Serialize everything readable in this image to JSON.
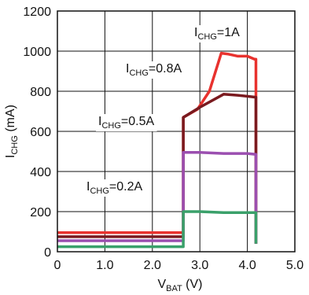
{
  "chart_data": {
    "type": "line",
    "title": "",
    "xlabel": {
      "main": "V",
      "sub": "BAT",
      "unit": " (V)"
    },
    "ylabel": {
      "main": "I",
      "sub": "CHG",
      "unit": " (mA)"
    },
    "xlim": [
      0,
      5.0
    ],
    "ylim": [
      0,
      1200
    ],
    "xticks": [
      "0",
      "1.0",
      "2.0",
      "3.0",
      "4.0",
      "5.0"
    ],
    "yticks": [
      "0",
      "200",
      "400",
      "600",
      "800",
      "1000",
      "1200"
    ],
    "grid": true,
    "series": [
      {
        "name": "ICHG=1A",
        "label": {
          "main": "I",
          "sub": "CHG",
          "rest": "=1A"
        },
        "color": "#e8322e",
        "x": [
          0.0,
          2.65,
          2.65,
          2.95,
          3.2,
          3.45,
          3.6,
          3.8,
          4.0,
          4.15,
          4.18,
          4.18
        ],
        "y": [
          95,
          95,
          670,
          710,
          800,
          990,
          985,
          975,
          975,
          960,
          960,
          40
        ]
      },
      {
        "name": "ICHG=0.8A",
        "label": {
          "main": "I",
          "sub": "CHG",
          "rest": "=0.8A"
        },
        "color": "#7a1a1f",
        "x": [
          0.0,
          2.65,
          2.65,
          3.0,
          3.5,
          3.8,
          4.0,
          4.18,
          4.18
        ],
        "y": [
          75,
          75,
          670,
          720,
          785,
          780,
          775,
          770,
          40
        ]
      },
      {
        "name": "ICHG=0.5A",
        "label": {
          "main": "I",
          "sub": "CHG",
          "rest": "=0.5A"
        },
        "color": "#9b4fb0",
        "x": [
          0.0,
          2.65,
          2.65,
          3.0,
          3.5,
          4.0,
          4.18,
          4.18
        ],
        "y": [
          55,
          55,
          495,
          495,
          490,
          490,
          485,
          40
        ]
      },
      {
        "name": "ICHG=0.2A",
        "label": {
          "main": "I",
          "sub": "CHG",
          "rest": "=0.2A"
        },
        "color": "#3aa06a",
        "x": [
          0.0,
          2.65,
          2.65,
          3.0,
          3.5,
          4.0,
          4.18,
          4.18
        ],
        "y": [
          25,
          25,
          200,
          200,
          195,
          195,
          195,
          40
        ]
      }
    ]
  }
}
